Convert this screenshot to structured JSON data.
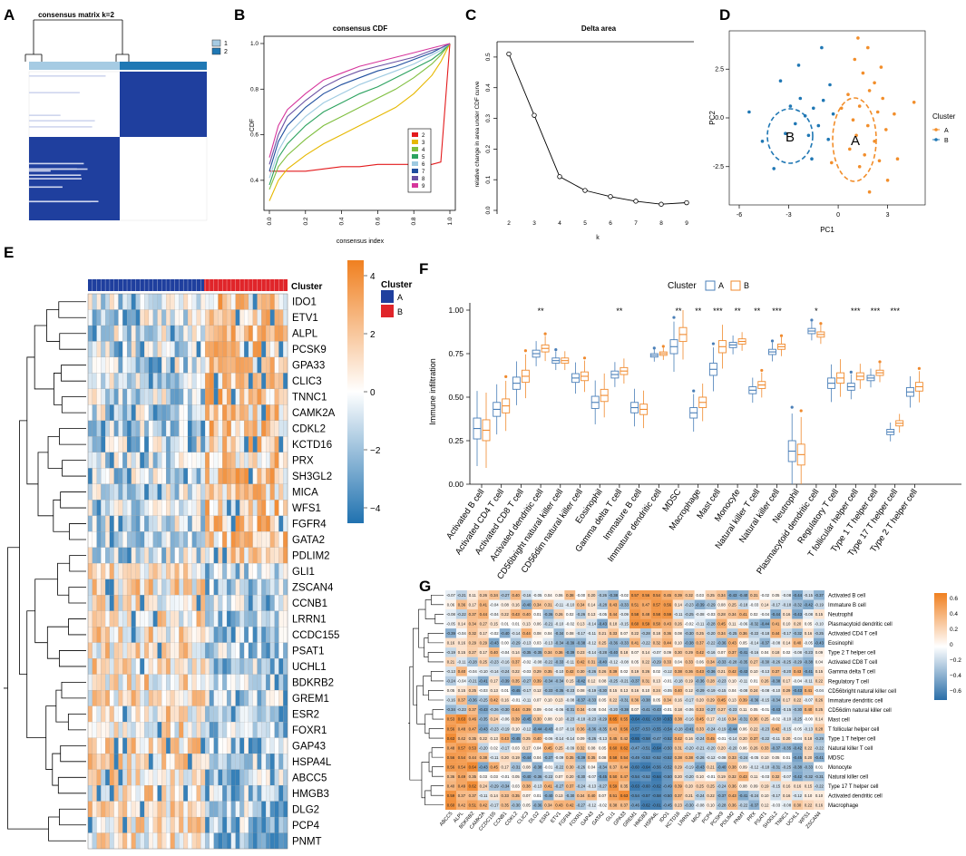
{
  "panels": {
    "A": {
      "letter": "A",
      "title": "consensus matrix k=2",
      "legend": [
        "1",
        "2"
      ],
      "colors": [
        "#a6cbe3",
        "#1f78b4"
      ]
    },
    "B": {
      "letter": "B",
      "title": "consensus CDF",
      "xlabel": "consensus index",
      "ylabel": "CDF",
      "xticks": [
        "0.0",
        "0.2",
        "0.4",
        "0.6",
        "0.8",
        "1.0"
      ],
      "yticks": [
        "0.4",
        "0.6",
        "0.8",
        "1.0"
      ],
      "legend": [
        "2",
        "3",
        "4",
        "5",
        "6",
        "7",
        "8",
        "9"
      ]
    },
    "C": {
      "letter": "C",
      "title": "Delta area",
      "xlabel": "k",
      "ylabel": "relative change in area under CDF curve",
      "xticks": [
        "2",
        "3",
        "4",
        "5",
        "6",
        "7",
        "8",
        "9"
      ],
      "yticks": [
        "0.0",
        "0.1",
        "0.2",
        "0.3",
        "0.4",
        "0.5"
      ]
    },
    "D": {
      "letter": "D",
      "xlabel": "PC1",
      "ylabel": "PC2",
      "xticks": [
        "-6",
        "-3",
        "0",
        "3"
      ],
      "yticks": [
        "-2.5",
        "0.0",
        "2.5"
      ],
      "legend_title": "Cluster",
      "legend": [
        "A",
        "B"
      ],
      "labelA": "A",
      "labelB": "B"
    },
    "E": {
      "letter": "E",
      "cluster_label": "Cluster",
      "legend_title": "Cluster",
      "legend": [
        "A",
        "B"
      ],
      "scale_ticks": [
        "4",
        "2",
        "0",
        "−2",
        "−4"
      ]
    },
    "F": {
      "letter": "F",
      "legend_title": "Cluster",
      "legend": [
        "A",
        "B"
      ],
      "ylabel": "Immune infiltration",
      "yticks": [
        "0.00",
        "0.25",
        "0.50",
        "0.75",
        "1.00"
      ]
    },
    "G": {
      "letter": "G",
      "scale_ticks": [
        "0.6",
        "0.4",
        "0.2",
        "0",
        "−0.2",
        "−0.4",
        "−0.6"
      ]
    }
  },
  "genes": [
    "IDO1",
    "ETV1",
    "ALPL",
    "PCSK9",
    "GPA33",
    "CLIC3",
    "TNNC1",
    "CAMK2A",
    "CDKL2",
    "KCTD16",
    "PRX",
    "SH3GL2",
    "MICA",
    "WFS1",
    "FGFR4",
    "GATA2",
    "PDLIM2",
    "GLI1",
    "ZSCAN4",
    "CCNB1",
    "LRRN1",
    "CCDC155",
    "PSAT1",
    "UCHL1",
    "BDKRB2",
    "GREM1",
    "ESR2",
    "FOXR1",
    "GAP43",
    "HSPA4L",
    "ABCC5",
    "HMGB3",
    "DLG2",
    "PCP4",
    "PNMT"
  ],
  "cells": [
    "Activated B cell",
    "Activated CD4 T cell",
    "Activated CD8 T cell",
    "Activated dendritic cell",
    "CD56bright natural killer cell",
    "CD56dim natural killer cell",
    "Eosinophil",
    "Gamma delta T cell",
    "Immature  B cell",
    "Immature dendritic cell",
    "MDSC",
    "Macrophage",
    "Mast cell",
    "Monocyte",
    "Natural killer T cell",
    "Natural killer cell",
    "Neutrophil",
    "Plasmacytoid dendritic cell",
    "Regulatory T cell",
    "T follicular helper cell",
    "Type 1 T helper cell",
    "Type 17 T helper cell",
    "Type 2 T helper cell"
  ],
  "sig": [
    "",
    "",
    "",
    "**",
    "",
    "",
    "",
    "**",
    "",
    "",
    "**",
    "**",
    "***",
    "**",
    "**",
    "***",
    "",
    "*",
    "",
    "***",
    "***",
    "***",
    ""
  ],
  "g_rows": [
    "Activated B cell",
    "Immature  B cell",
    "Neutrophil",
    "Plasmacytoid dendritic cell",
    "Activated CD4 T cell",
    "Eosinophil",
    "Type 2 T helper cell",
    "Activated CD8 T cell",
    "Gamma delta T cell",
    "Regulatory T cell",
    "CD56bright natural killer cell",
    "Immature dendritic cell",
    "CD56dim natural killer cell",
    "Mast cell",
    "T follicular helper cell",
    "Type 1 T helper cell",
    "Natural killer T cell",
    "MDSC",
    "Monocyte",
    "Natural killer cell",
    "Type 17 T helper cell",
    "Activated dendritic cell",
    "Macrophage"
  ],
  "g_cols": [
    "ABCC5",
    "ALPL",
    "BDKRB2",
    "CAMK2A",
    "CCDC155",
    "CCNB1",
    "CDKL2",
    "CLIC3",
    "DLG2",
    "ESR2",
    "ETV1",
    "FGFR4",
    "FOXR1",
    "GAP43",
    "GATA2",
    "GLI1",
    "GPA33",
    "GREM1",
    "HMGB3",
    "HSPA4L",
    "IDO1",
    "KCTD16",
    "LRRN1",
    "MICA",
    "PCP4",
    "PCSK9",
    "PDLIM2",
    "PNMT",
    "PRX",
    "PSAT1",
    "SH3GL2",
    "TNNC1",
    "UCHL1",
    "WFS1",
    "ZSCAN4"
  ],
  "chart_data": [
    {
      "type": "line",
      "title": "consensus CDF",
      "xlabel": "consensus index",
      "ylabel": "CDF",
      "xlim": [
        0,
        1
      ],
      "ylim": [
        0.3,
        1.0
      ],
      "x": [
        0,
        0.05,
        0.1,
        0.2,
        0.3,
        0.4,
        0.5,
        0.6,
        0.7,
        0.8,
        0.9,
        0.95,
        1.0
      ],
      "series": [
        {
          "name": "2",
          "color": "#e31a1c",
          "values": [
            0.44,
            0.44,
            0.44,
            0.44,
            0.45,
            0.46,
            0.46,
            0.47,
            0.47,
            0.47,
            0.47,
            0.48,
            1.0
          ]
        },
        {
          "name": "3",
          "color": "#e6b800",
          "values": [
            0.31,
            0.4,
            0.45,
            0.51,
            0.56,
            0.6,
            0.64,
            0.68,
            0.72,
            0.78,
            0.86,
            0.92,
            1.0
          ]
        },
        {
          "name": "4",
          "color": "#7fbf3f",
          "values": [
            0.36,
            0.46,
            0.51,
            0.58,
            0.64,
            0.68,
            0.72,
            0.76,
            0.8,
            0.85,
            0.91,
            0.95,
            1.0
          ]
        },
        {
          "name": "5",
          "color": "#2ca25f",
          "values": [
            0.38,
            0.5,
            0.56,
            0.64,
            0.7,
            0.74,
            0.78,
            0.81,
            0.85,
            0.89,
            0.93,
            0.96,
            1.0
          ]
        },
        {
          "name": "6",
          "color": "#9ecae1",
          "values": [
            0.41,
            0.53,
            0.6,
            0.68,
            0.74,
            0.78,
            0.82,
            0.85,
            0.88,
            0.91,
            0.95,
            0.97,
            1.0
          ]
        },
        {
          "name": "7",
          "color": "#1f4e9e",
          "values": [
            0.44,
            0.57,
            0.64,
            0.72,
            0.78,
            0.82,
            0.85,
            0.88,
            0.9,
            0.93,
            0.96,
            0.98,
            1.0
          ]
        },
        {
          "name": "8",
          "color": "#6a51a3",
          "values": [
            0.47,
            0.6,
            0.68,
            0.75,
            0.81,
            0.85,
            0.88,
            0.9,
            0.92,
            0.94,
            0.97,
            0.98,
            1.0
          ]
        },
        {
          "name": "9",
          "color": "#d6359c",
          "values": [
            0.5,
            0.64,
            0.71,
            0.78,
            0.84,
            0.87,
            0.9,
            0.92,
            0.94,
            0.96,
            0.98,
            0.99,
            1.0
          ]
        }
      ]
    },
    {
      "type": "line",
      "title": "Delta area",
      "xlabel": "k",
      "ylabel": "relative change in area under CDF curve",
      "x": [
        2,
        3,
        4,
        5,
        6,
        7,
        8,
        9
      ],
      "values": [
        0.51,
        0.31,
        0.11,
        0.065,
        0.045,
        0.03,
        0.02,
        0.025
      ],
      "ylim": [
        0,
        0.55
      ]
    },
    {
      "type": "scatter",
      "xlabel": "PC1",
      "ylabel": "PC2",
      "xlim": [
        -6,
        5
      ],
      "ylim": [
        -4.2,
        4.2
      ],
      "series": [
        {
          "name": "A",
          "color": "#f28e2b",
          "points": [
            [
              1.2,
              4.1
            ],
            [
              1.8,
              3.6
            ],
            [
              1.0,
              3.0
            ],
            [
              2.6,
              2.6
            ],
            [
              1.5,
              2.3
            ],
            [
              2.2,
              1.8
            ],
            [
              0.6,
              1.2
            ],
            [
              1.9,
              1.4
            ],
            [
              2.7,
              1.0
            ],
            [
              1.3,
              0.6
            ],
            [
              2.4,
              0.3
            ],
            [
              0.9,
              -0.1
            ],
            [
              1.8,
              -0.4
            ],
            [
              2.9,
              -0.6
            ],
            [
              1.1,
              -0.9
            ],
            [
              2.2,
              -1.2
            ],
            [
              0.7,
              -1.6
            ],
            [
              1.6,
              -1.9
            ],
            [
              2.5,
              -2.2
            ],
            [
              1.3,
              -2.5
            ],
            [
              3.6,
              -2.1
            ],
            [
              3.0,
              -3.2
            ],
            [
              1.9,
              -3.8
            ],
            [
              4.6,
              0.8
            ],
            [
              -0.4,
              -2.3
            ],
            [
              0.2,
              0.5
            ],
            [
              3.4,
              0.2
            ]
          ]
        },
        {
          "name": "B",
          "color": "#1f77b4",
          "points": [
            [
              -5.4,
              0.3
            ],
            [
              -4.6,
              -1.2
            ],
            [
              -3.5,
              1.9
            ],
            [
              -3.2,
              -0.8
            ],
            [
              -2.9,
              0.6
            ],
            [
              -2.6,
              -0.3
            ],
            [
              -2.3,
              1.0
            ],
            [
              -2.0,
              0.1
            ],
            [
              -1.8,
              -0.9
            ],
            [
              -1.5,
              0.5
            ],
            [
              -1.2,
              -0.4
            ],
            [
              -0.9,
              0.9
            ],
            [
              -0.6,
              -1.1
            ],
            [
              -0.3,
              0.2
            ],
            [
              -2.4,
              2.7
            ],
            [
              -1.0,
              3.6
            ],
            [
              -3.9,
              -2.6
            ],
            [
              -1.6,
              -2.1
            ],
            [
              -0.5,
              1.7
            ]
          ]
        }
      ]
    }
  ]
}
